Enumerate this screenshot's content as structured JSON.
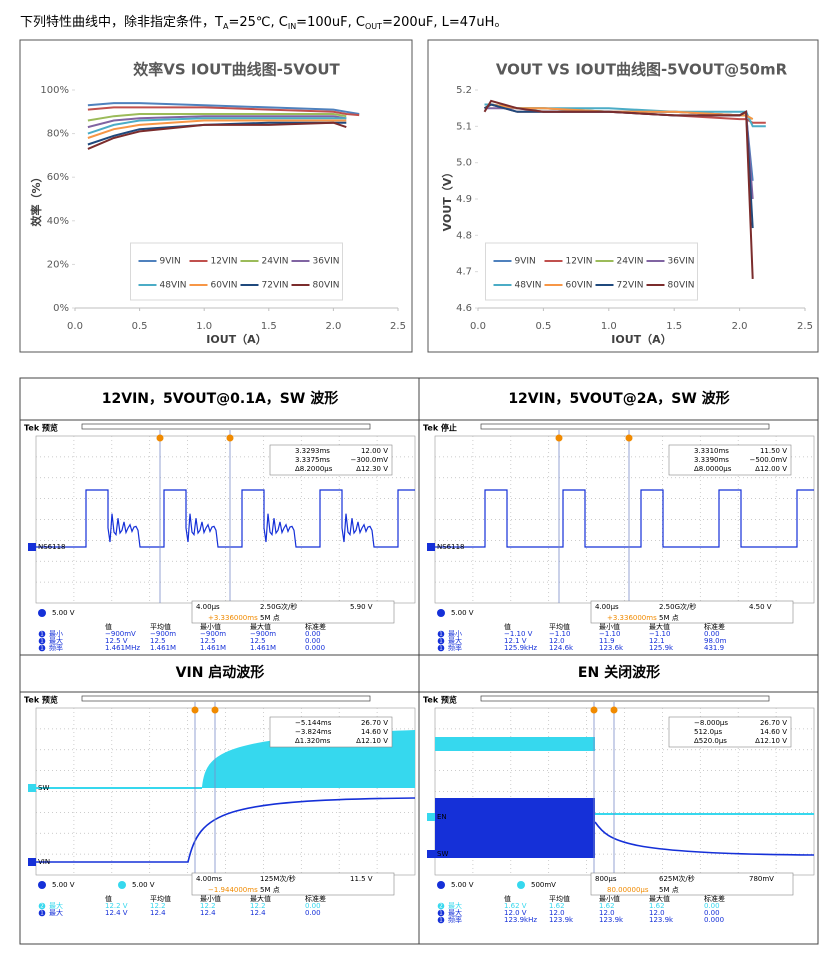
{
  "header": {
    "segments": [
      "下列特性曲线中，除非指定条件，T",
      "A",
      "=25℃, C",
      "IN",
      "=100uF, C",
      "OUT",
      "=200uF, L=47uH。"
    ]
  },
  "chart_data": [
    {
      "type": "line",
      "title": "效率VS IOUT曲线图-5VOUT",
      "xlabel": "IOUT（A）",
      "ylabel": "效率（%）",
      "x": [
        0.1,
        0.3,
        0.5,
        1.0,
        1.5,
        2.0,
        2.1,
        2.2
      ],
      "xlim": [
        0,
        2.5
      ],
      "ylim": [
        0,
        100
      ],
      "xticks": [
        {
          "value": 0,
          "label": "0.0"
        },
        0.5,
        {
          "value": 1,
          "label": "1.0"
        },
        1.5,
        {
          "value": 2,
          "label": "2.0"
        },
        2.5
      ],
      "yticks": [
        {
          "value": 0,
          "label": "0%"
        },
        {
          "value": 20,
          "label": "20%"
        },
        {
          "value": 40,
          "label": "40%"
        },
        {
          "value": 60,
          "label": "60%"
        },
        {
          "value": 80,
          "label": "80%"
        },
        {
          "value": 100,
          "label": "100%"
        }
      ],
      "legend": "lower center",
      "grid": false,
      "series": [
        {
          "name": "9VIN",
          "color": "#4f81bd",
          "values": [
            93,
            94,
            94,
            93,
            92,
            91,
            90,
            89
          ]
        },
        {
          "name": "12VIN",
          "color": "#c0504d",
          "values": [
            91,
            92,
            92,
            92,
            91,
            90,
            89,
            88.5
          ]
        },
        {
          "name": "24VIN",
          "color": "#9bbb59",
          "values": [
            86,
            88,
            89,
            89,
            89,
            89,
            88,
            null
          ]
        },
        {
          "name": "36VIN",
          "color": "#8064a2",
          "values": [
            83,
            86,
            87,
            88,
            88,
            88,
            87,
            null
          ]
        },
        {
          "name": "48VIN",
          "color": "#4bacc6",
          "values": [
            80,
            84,
            86,
            87,
            87,
            87,
            87,
            null
          ]
        },
        {
          "name": "60VIN",
          "color": "#f79646",
          "values": [
            78,
            82,
            84,
            86,
            86,
            86,
            86,
            null
          ]
        },
        {
          "name": "72VIN",
          "color": "#1f497d",
          "values": [
            75,
            79,
            82,
            84,
            85,
            85,
            85,
            null
          ]
        },
        {
          "name": "80VIN",
          "color": "#7b2c2c",
          "values": [
            73,
            78,
            81,
            84,
            84,
            85,
            83,
            null
          ]
        }
      ]
    },
    {
      "type": "line",
      "title": "VOUT VS IOUT曲线图-5VOUT@50mR",
      "xlabel": "IOUT（A）",
      "ylabel": "VOUT（V）",
      "x": [
        0.05,
        0.1,
        0.3,
        0.5,
        1.0,
        1.5,
        2.0,
        2.05,
        2.1,
        2.2
      ],
      "xlim": [
        0,
        2.5
      ],
      "ylim": [
        4.6,
        5.2
      ],
      "xticks": [
        {
          "value": 0,
          "label": "0.0"
        },
        0.5,
        {
          "value": 1,
          "label": "1.0"
        },
        1.5,
        {
          "value": 2,
          "label": "2.0"
        },
        2.5
      ],
      "yticks": [
        4.6,
        4.7,
        4.8,
        4.9,
        {
          "value": 5,
          "label": "5.0"
        },
        5.1,
        5.2
      ],
      "legend": "lower center",
      "grid": false,
      "series": [
        {
          "name": "9VIN",
          "color": "#4f81bd",
          "values": [
            5.16,
            5.16,
            5.15,
            5.15,
            5.14,
            5.14,
            5.13,
            5.13,
            4.95,
            null
          ]
        },
        {
          "name": "12VIN",
          "color": "#c0504d",
          "values": [
            5.15,
            5.16,
            5.14,
            5.14,
            5.14,
            5.13,
            5.12,
            5.12,
            5.11,
            5.11
          ]
        },
        {
          "name": "24VIN",
          "color": "#9bbb59",
          "values": [
            5.15,
            5.16,
            5.15,
            5.15,
            5.14,
            5.14,
            5.13,
            5.13,
            5.12,
            null
          ]
        },
        {
          "name": "36VIN",
          "color": "#8064a2",
          "values": [
            5.15,
            5.15,
            5.15,
            5.14,
            5.14,
            5.14,
            5.13,
            5.14,
            4.9,
            null
          ]
        },
        {
          "name": "48VIN",
          "color": "#4bacc6",
          "values": [
            5.16,
            5.16,
            5.15,
            5.15,
            5.15,
            5.14,
            5.14,
            5.14,
            5.1,
            5.1
          ]
        },
        {
          "name": "60VIN",
          "color": "#f79646",
          "values": [
            5.15,
            5.16,
            5.15,
            5.15,
            5.14,
            5.14,
            5.13,
            5.13,
            5.12,
            null
          ]
        },
        {
          "name": "72VIN",
          "color": "#1f497d",
          "values": [
            5.15,
            5.16,
            5.14,
            5.14,
            5.14,
            5.13,
            5.13,
            5.14,
            4.82,
            null
          ]
        },
        {
          "name": "80VIN",
          "color": "#7b2c2c",
          "values": [
            5.14,
            5.17,
            5.15,
            5.14,
            5.14,
            5.13,
            5.13,
            5.14,
            4.68,
            null
          ]
        }
      ]
    }
  ],
  "scopes": [
    {
      "title": "12VIN，5VOUT@0.1A，SW 波形",
      "status": "Tek 预览",
      "labels": [
        "NS6118"
      ],
      "cursor_rows": [
        [
          "3.3293ms",
          "12.00 V"
        ],
        [
          "3.3375ms",
          "−300.0mV"
        ],
        [
          "Δ8.2000μs",
          "Δ12.30 V"
        ]
      ],
      "channels": [
        "5.00 V"
      ],
      "timebase": [
        "4.00μs",
        "2.50G次/秒",
        "5.90 V"
      ],
      "trigger": [
        "+3.336000ms",
        "5M 点"
      ],
      "meas_header": [
        "值",
        "平均值",
        "最小值",
        "最大值",
        "标准差"
      ],
      "meas_channels": [
        1,
        1,
        1
      ],
      "meas_rows": [
        [
          "最小",
          "−900mV",
          "−900m",
          "−900m",
          "−900m",
          "0.00"
        ],
        [
          "最大",
          "12.5 V",
          "12.5",
          "12.5",
          "12.5",
          "0.00"
        ],
        [
          "频率",
          "1.461MHz",
          "1.461M",
          "1.461M",
          "1.461M",
          "0.000"
        ]
      ]
    },
    {
      "title": "12VIN，5VOUT@2A，SW 波形",
      "status": "Tek 停止",
      "labels": [
        "NS6118"
      ],
      "cursor_rows": [
        [
          "3.3310ms",
          "11.50 V"
        ],
        [
          "3.3390ms",
          "−500.0mV"
        ],
        [
          "Δ8.0000μs",
          "Δ12.00 V"
        ]
      ],
      "channels": [
        "5.00 V"
      ],
      "timebase": [
        "4.00μs",
        "2.50G次/秒",
        "4.50 V"
      ],
      "trigger": [
        "+3.336000ms",
        "5M 点"
      ],
      "meas_header": [
        "值",
        "平均值",
        "最小值",
        "最大值",
        "标准差"
      ],
      "meas_channels": [
        1,
        1,
        1
      ],
      "meas_rows": [
        [
          "最小",
          "−1.10 V",
          "−1.10",
          "−1.10",
          "−1.10",
          "0.00"
        ],
        [
          "最大",
          "12.1 V",
          "12.0",
          "11.9",
          "12.1",
          "98.0m"
        ],
        [
          "频率",
          "125.9kHz",
          "124.6k",
          "123.6k",
          "125.9k",
          "431.9"
        ]
      ]
    },
    {
      "title": "VIN 启动波形",
      "status": "Tek 预览",
      "labels": [
        "SW",
        "VIN"
      ],
      "cursor_rows": [
        [
          "−5.144ms",
          "26.70 V"
        ],
        [
          "−3.824ms",
          "14.60 V"
        ],
        [
          "Δ1.320ms",
          "Δ12.10 V"
        ]
      ],
      "channels": [
        "5.00 V",
        "5.00 V"
      ],
      "timebase": [
        "4.00ms",
        "125M次/秒",
        "11.5 V"
      ],
      "trigger": [
        "−1.944000ms",
        "5M 点"
      ],
      "meas_header": [
        "值",
        "平均值",
        "最小值",
        "最大值",
        "标准差"
      ],
      "meas_channels": [
        2,
        1
      ],
      "meas_rows": [
        [
          "最大",
          "12.2 V",
          "12.2",
          "12.2",
          "12.2",
          "0.00"
        ],
        [
          "最大",
          "12.4 V",
          "12.4",
          "12.4",
          "12.4",
          "0.00"
        ]
      ]
    },
    {
      "title": "EN 关闭波形",
      "status": "Tek 预览",
      "labels": [
        "EN",
        "SW"
      ],
      "cursor_rows": [
        [
          "−8.000μs",
          "26.70 V"
        ],
        [
          "512.0μs",
          "14.60 V"
        ],
        [
          "Δ520.0μs",
          "Δ12.10 V"
        ]
      ],
      "channels": [
        "5.00 V",
        "500mV"
      ],
      "timebase": [
        "800μs",
        "625M次/秒",
        "780mV"
      ],
      "trigger": [
        "80.00000μs",
        "5M 点"
      ],
      "meas_header": [
        "值",
        "平均值",
        "最小值",
        "最大值",
        "标准差"
      ],
      "meas_channels": [
        2,
        1,
        1
      ],
      "meas_rows": [
        [
          "最大",
          "1.62 V",
          "1.62",
          "1.62",
          "1.62",
          "0.00"
        ],
        [
          "最大",
          "12.0 V",
          "12.0",
          "12.0",
          "12.0",
          "0.00"
        ],
        [
          "频率",
          "123.9kHz",
          "123.9k",
          "123.9k",
          "123.9k",
          "0.000"
        ]
      ]
    }
  ]
}
